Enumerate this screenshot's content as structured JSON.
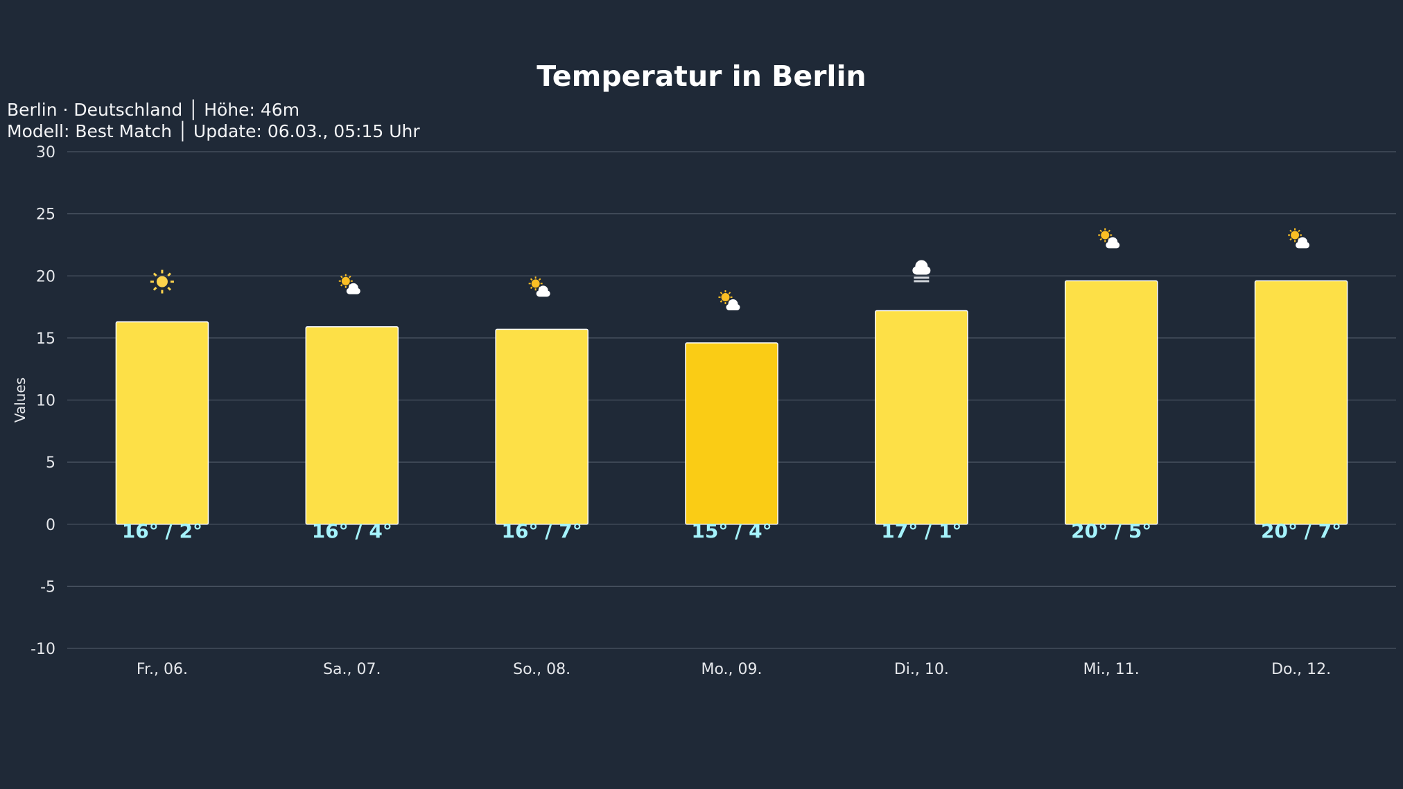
{
  "chart_data": {
    "type": "bar",
    "title": "Temperatur in Berlin",
    "subtitle": [
      "Berlin · Deutschland │ Höhe: 46m",
      "Modell: Best Match │ Update: 06.03., 05:15 Uhr"
    ],
    "xlabel": "",
    "ylabel": "Values",
    "ylim": [
      -10,
      30
    ],
    "yticks": [
      30,
      25,
      20,
      15,
      10,
      5,
      0,
      -5,
      -10
    ],
    "grid": true,
    "categories": [
      "Fr., 06.",
      "Sa., 07.",
      "So., 08.",
      "Mo., 09.",
      "Di., 10.",
      "Mi., 11.",
      "Do., 12."
    ],
    "values": [
      16.3,
      15.9,
      15.7,
      14.6,
      17.2,
      19.6,
      19.6
    ],
    "data_labels": [
      "16° / 2°",
      "16° / 4°",
      "16° / 7°",
      "15° / 4°",
      "17° / 1°",
      "20° / 5°",
      "20° / 7°"
    ],
    "icons": [
      "sun-icon",
      "sun-cloud-icon",
      "sun-cloud-icon",
      "sun-cloud-icon",
      "fog-icon",
      "sun-cloud-icon",
      "sun-cloud-icon"
    ],
    "bar_colors": [
      "#fde047",
      "#fde047",
      "#fde047",
      "#facc15",
      "#fde047",
      "#fde047",
      "#fde047"
    ],
    "label_color": "#a5f3fc",
    "background": "#1f2937"
  }
}
